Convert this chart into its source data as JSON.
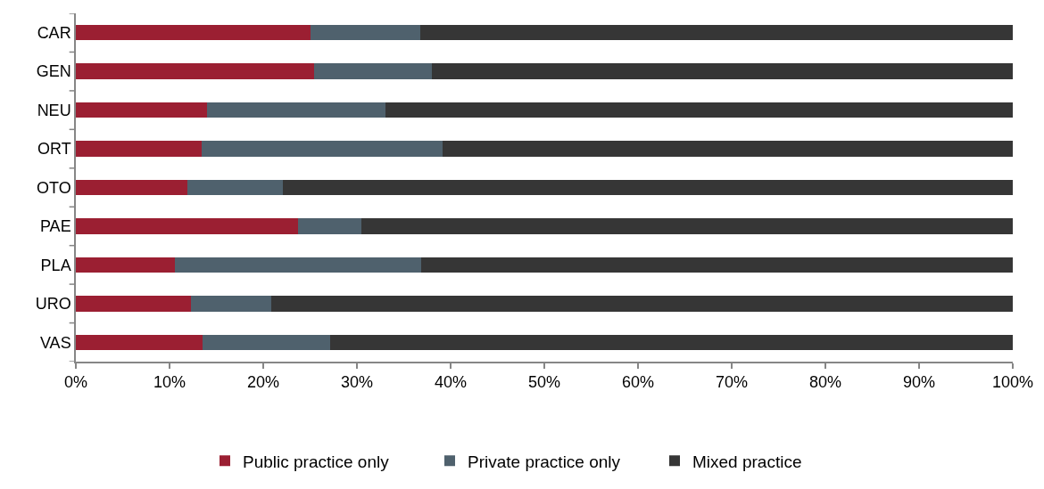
{
  "chart_data": {
    "type": "bar",
    "orientation": "horizontal",
    "stacked": true,
    "categories": [
      "CAR",
      "GEN",
      "NEU",
      "ORT",
      "OTO",
      "PAE",
      "PLA",
      "URO",
      "VAS"
    ],
    "series": [
      {
        "name": "Public practice only",
        "color": "#9b1f32",
        "values": [
          25.0,
          25.4,
          14.0,
          13.4,
          11.9,
          23.7,
          10.6,
          12.3,
          13.5
        ]
      },
      {
        "name": "Private practice only",
        "color": "#4f616d",
        "values": [
          11.8,
          12.6,
          19.0,
          25.7,
          10.2,
          6.8,
          26.3,
          8.6,
          13.6
        ]
      },
      {
        "name": "Mixed practice",
        "color": "#363636",
        "values": [
          63.2,
          62.0,
          67.0,
          60.9,
          77.9,
          69.5,
          63.1,
          79.1,
          72.9
        ]
      }
    ],
    "xlim": [
      0,
      100
    ],
    "xticks": [
      {
        "value": 0,
        "label": "0%"
      },
      {
        "value": 10,
        "label": "10%"
      },
      {
        "value": 20,
        "label": "20%"
      },
      {
        "value": 30,
        "label": "30%"
      },
      {
        "value": 40,
        "label": "40%"
      },
      {
        "value": 50,
        "label": "50%"
      },
      {
        "value": 60,
        "label": "60%"
      },
      {
        "value": 70,
        "label": "70%"
      },
      {
        "value": 80,
        "label": "80%"
      },
      {
        "value": 90,
        "label": "90%"
      },
      {
        "value": 100,
        "label": "100%"
      }
    ],
    "legend": "bottom"
  }
}
